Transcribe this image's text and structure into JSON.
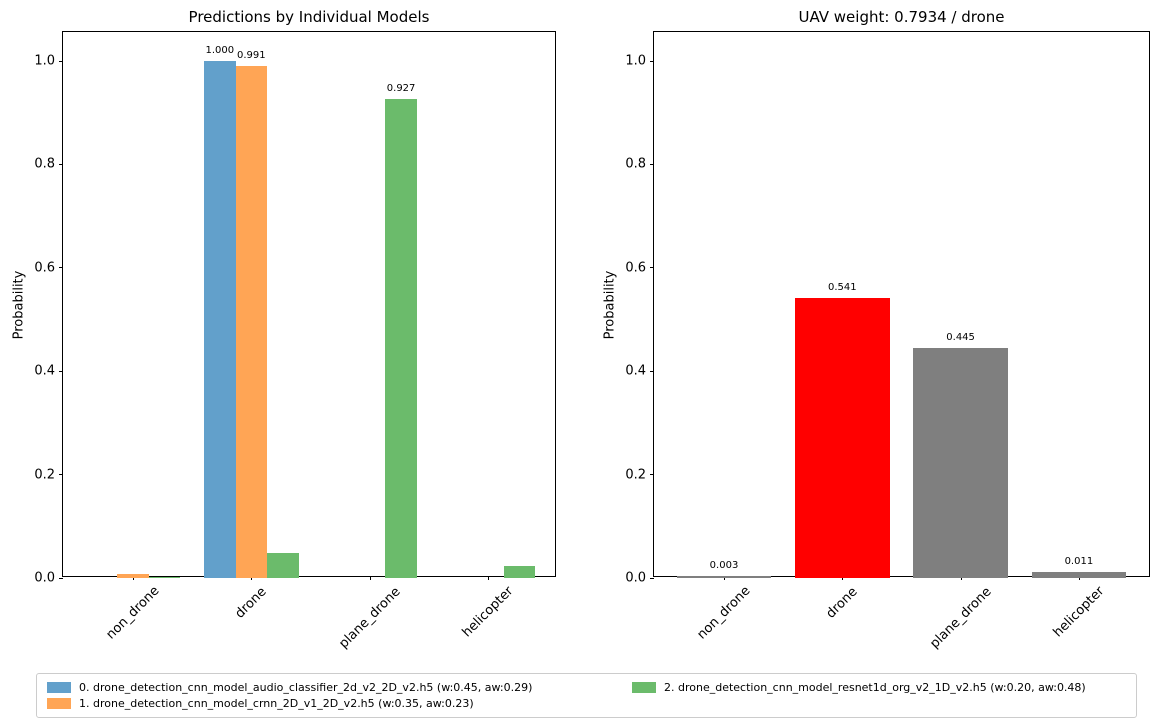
{
  "figure": {
    "background": "#ffffff",
    "text_color": "#000000",
    "axis_color": "#000000"
  },
  "chart_data": [
    {
      "type": "bar",
      "title": "Predictions by Individual Models",
      "xlabel": "",
      "ylabel": "Probability",
      "categories": [
        "non_drone",
        "drone",
        "plane_drone",
        "helicopter"
      ],
      "series": [
        {
          "name": "0. drone_detection_cnn_model_audio_classifier_2d_v2_2D_v2.h5 (w:0.45, aw:0.29)",
          "color": "#62A0CB",
          "values": [
            0.0,
            1.0,
            0.0,
            0.0
          ],
          "bar_labels": [
            "",
            "1.000",
            "",
            ""
          ]
        },
        {
          "name": "1. drone_detection_cnn_model_crnn_2D_v1_2D_v2.h5 (w:0.35, aw:0.23)",
          "color": "#FFA555",
          "values": [
            0.008,
            0.991,
            0.0,
            0.0
          ],
          "bar_labels": [
            "",
            "0.991",
            "",
            ""
          ]
        },
        {
          "name": "2. drone_detection_cnn_model_resnet1d_org_v2_1D_v2.h5 (w:0.20, aw:0.48)",
          "color": "#6BBB6B",
          "values": [
            0.002,
            0.048,
            0.927,
            0.023
          ],
          "bar_labels": [
            "",
            "",
            "0.927",
            ""
          ]
        }
      ],
      "ylim": [
        0,
        1.056
      ],
      "yticks": [
        0.0,
        0.2,
        0.4,
        0.6,
        0.8,
        1.0
      ],
      "grid": false,
      "legend_position": "bottom"
    },
    {
      "type": "bar",
      "title": "UAV weight: 0.7934 / drone",
      "xlabel": "",
      "ylabel": "Probability",
      "categories": [
        "non_drone",
        "drone",
        "plane_drone",
        "helicopter"
      ],
      "values": [
        0.003,
        0.541,
        0.445,
        0.011
      ],
      "bar_labels": [
        "0.003",
        "0.541",
        "0.445",
        "0.011"
      ],
      "bar_colors": [
        "#7F7F7F",
        "#FF0000",
        "#7F7F7F",
        "#7F7F7F"
      ],
      "highlight": {
        "category": "drone",
        "color": "#FF0000"
      },
      "ylim": [
        0,
        1.056
      ],
      "yticks": [
        0.0,
        0.2,
        0.4,
        0.6,
        0.8,
        1.0
      ],
      "grid": false
    }
  ],
  "legend": {
    "columns": 2,
    "entries": [
      {
        "label": "0. drone_detection_cnn_model_audio_classifier_2d_v2_2D_v2.h5 (w:0.45, aw:0.29)",
        "color": "#62A0CB"
      },
      {
        "label": "1. drone_detection_cnn_model_crnn_2D_v1_2D_v2.h5 (w:0.35, aw:0.23)",
        "color": "#FFA555"
      },
      {
        "label": "2. drone_detection_cnn_model_resnet1d_org_v2_1D_v2.h5 (w:0.20, aw:0.48)",
        "color": "#6BBB6B"
      }
    ]
  }
}
